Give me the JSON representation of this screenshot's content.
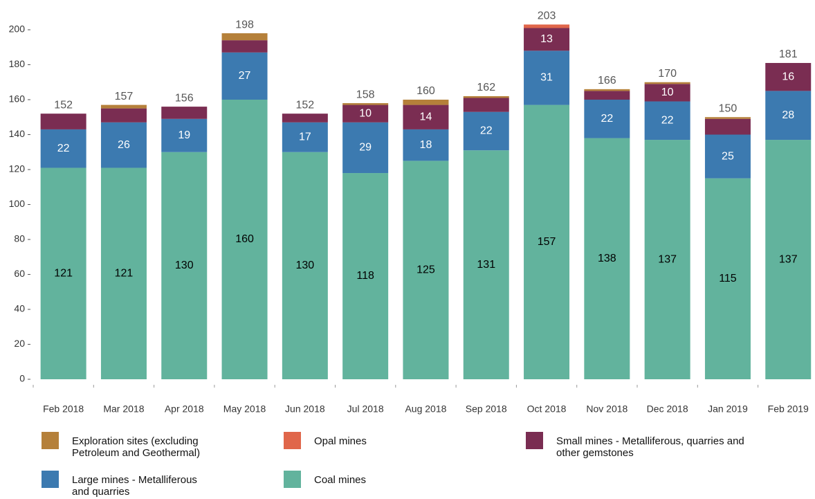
{
  "chart_data": {
    "type": "stacked_bar",
    "categories": [
      "Feb 2018",
      "Mar 2018",
      "Apr 2018",
      "May 2018",
      "Jun 2018",
      "Jul 2018",
      "Aug 2018",
      "Sep 2018",
      "Oct 2018",
      "Nov 2018",
      "Dec 2018",
      "Jan 2019",
      "Feb 2019"
    ],
    "series": [
      {
        "name": "Coal mines",
        "color": "#62b39d",
        "label_color": "#000000",
        "values": [
          121,
          121,
          130,
          160,
          130,
          118,
          125,
          131,
          157,
          138,
          137,
          115,
          137
        ]
      },
      {
        "name": "Large mines - Metalliferous and quarries",
        "color": "#3c7ab0",
        "label_color": "#ffffff",
        "values": [
          22,
          26,
          19,
          27,
          17,
          29,
          18,
          22,
          31,
          22,
          22,
          25,
          28
        ]
      },
      {
        "name": "Small mines - Metalliferous, quarries and other gemstones",
        "color": "#7a2d52",
        "label_color": "#ffffff",
        "values": [
          9,
          8,
          7,
          7,
          5,
          10,
          14,
          8,
          13,
          5,
          10,
          9,
          16
        ]
      },
      {
        "name": "Opal mines",
        "color": "#e0664a",
        "label_color": "#ffffff",
        "values": [
          0,
          0,
          0,
          0,
          0,
          0,
          0,
          0,
          2,
          0,
          0,
          0,
          0
        ]
      },
      {
        "name": "Exploration sites (excluding Petroleum and Geothermal)",
        "color": "#b5803a",
        "label_color": "#ffffff",
        "values": [
          0,
          2,
          0,
          4,
          0,
          1,
          3,
          1,
          0,
          1,
          1,
          1,
          0
        ]
      }
    ],
    "totals": [
      152,
      157,
      156,
      198,
      152,
      158,
      160,
      162,
      203,
      166,
      170,
      150,
      181
    ],
    "ylim": [
      0,
      205
    ],
    "yticks": [
      0,
      20,
      40,
      60,
      80,
      100,
      120,
      140,
      160,
      180,
      200
    ],
    "grid": false
  }
}
